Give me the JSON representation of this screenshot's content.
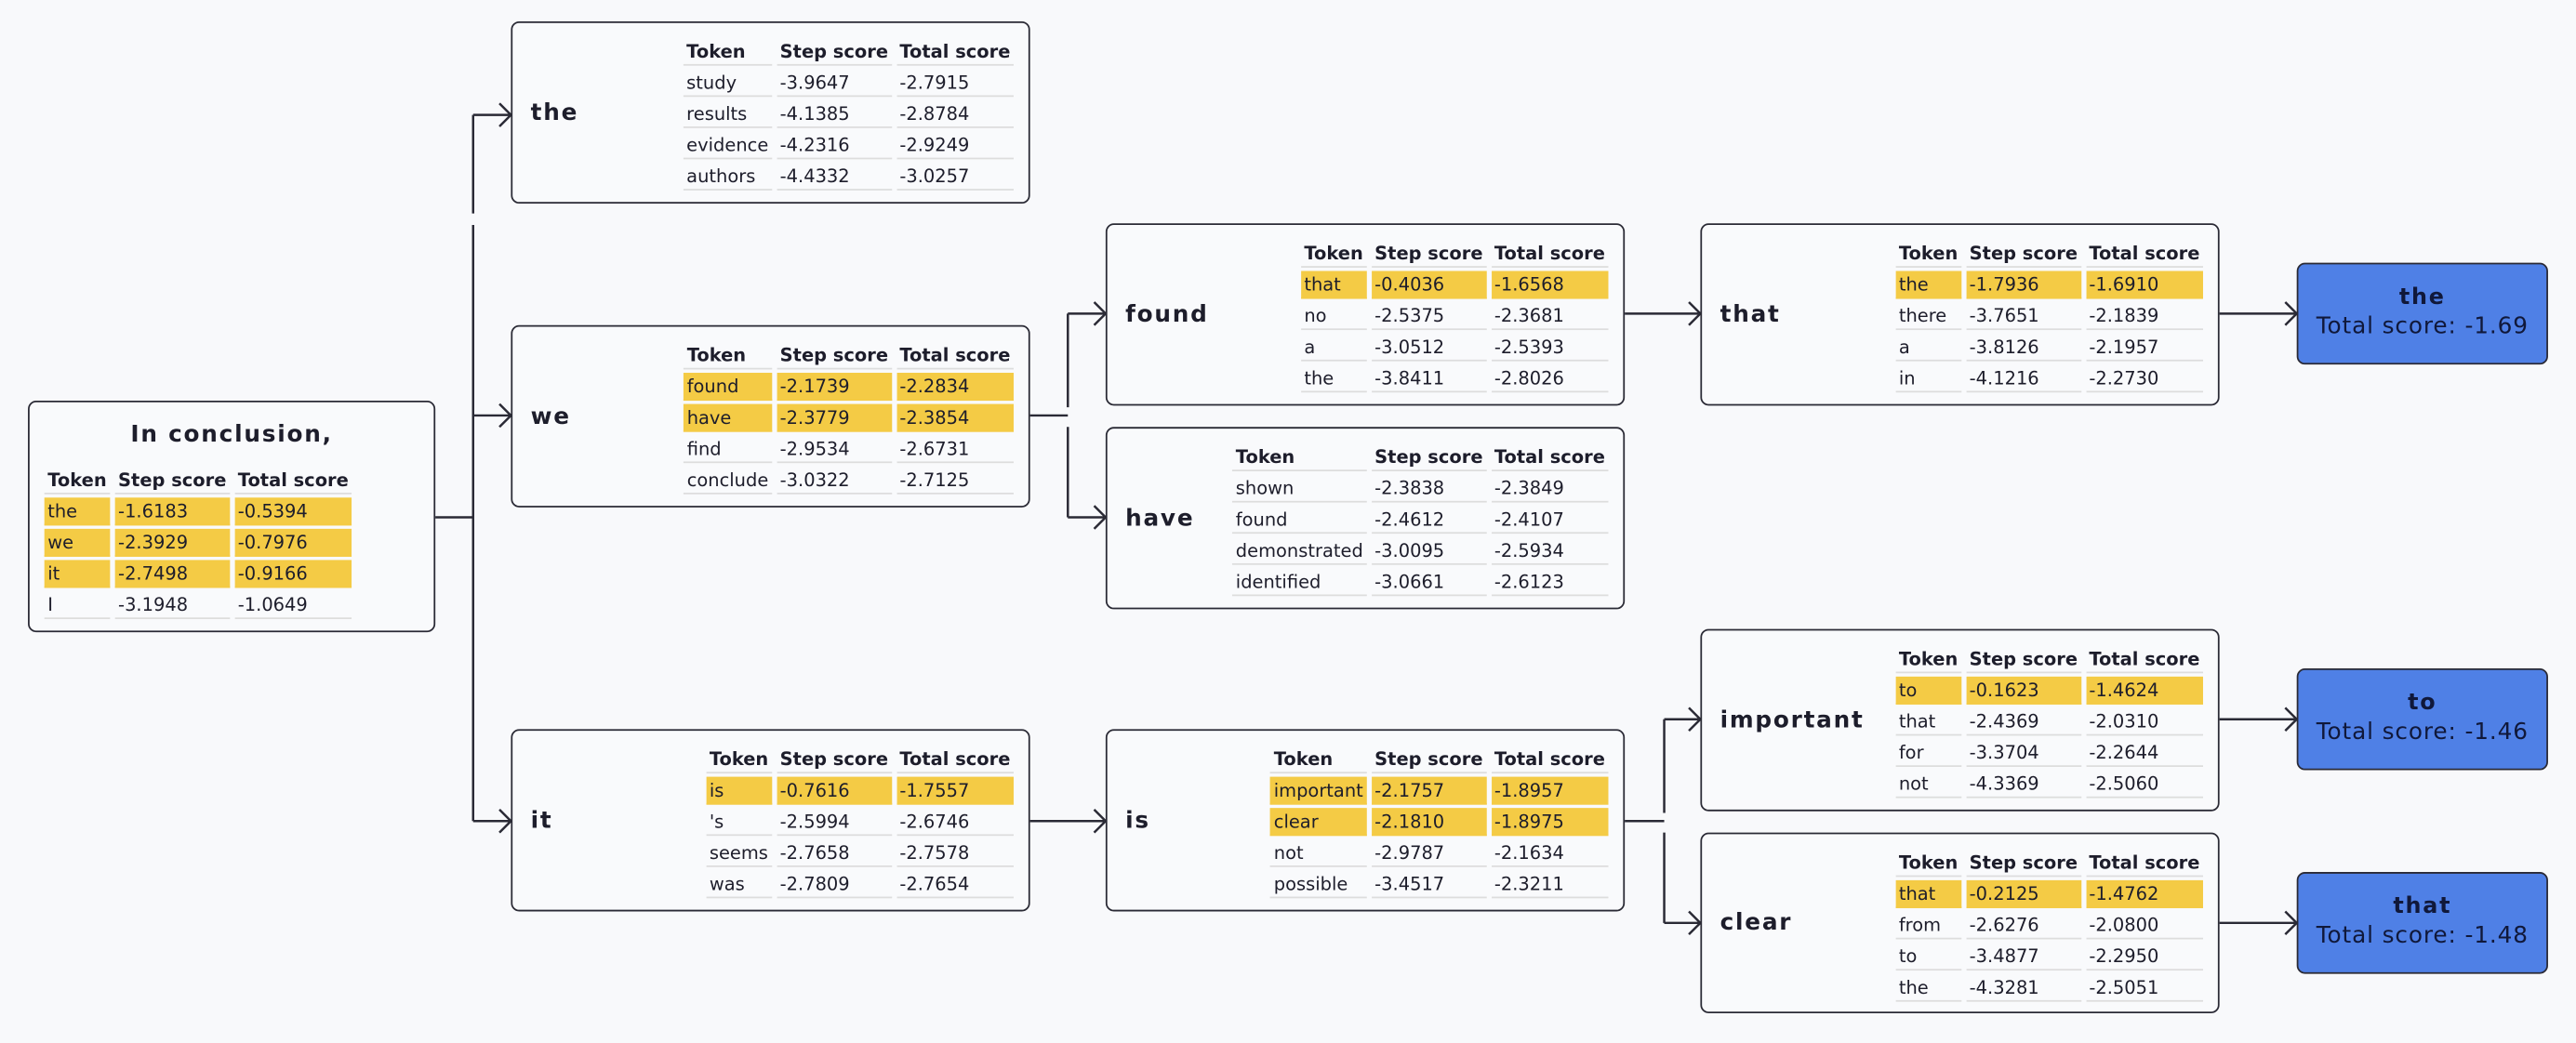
{
  "columns": [
    "Token",
    "Step score",
    "Total score"
  ],
  "nodes": [
    {
      "label": "In conclusion,",
      "rows": [
        [
          "the",
          "-1.6183",
          "-0.5394"
        ],
        [
          "we",
          "-2.3929",
          "-0.7976"
        ],
        [
          "it",
          "-2.7498",
          "-0.9166"
        ],
        [
          "I",
          "-3.1948",
          "-1.0649"
        ]
      ],
      "highlight": [
        0,
        1,
        2
      ]
    },
    {
      "label": "the",
      "rows": [
        [
          "study",
          "-3.9647",
          "-2.7915"
        ],
        [
          "results",
          "-4.1385",
          "-2.8784"
        ],
        [
          "evidence",
          "-4.2316",
          "-2.9249"
        ],
        [
          "authors",
          "-4.4332",
          "-3.0257"
        ]
      ],
      "highlight": []
    },
    {
      "label": "we",
      "rows": [
        [
          "found",
          "-2.1739",
          "-2.2834"
        ],
        [
          "have",
          "-2.3779",
          "-2.3854"
        ],
        [
          "find",
          "-2.9534",
          "-2.6731"
        ],
        [
          "conclude",
          "-3.0322",
          "-2.7125"
        ]
      ],
      "highlight": [
        0,
        1
      ]
    },
    {
      "label": "it",
      "rows": [
        [
          "is",
          "-0.7616",
          "-1.7557"
        ],
        [
          "'s",
          "-2.5994",
          "-2.6746"
        ],
        [
          "seems",
          "-2.7658",
          "-2.7578"
        ],
        [
          "was",
          "-2.7809",
          "-2.7654"
        ]
      ],
      "highlight": [
        0
      ]
    },
    {
      "label": "found",
      "rows": [
        [
          "that",
          "-0.4036",
          "-1.6568"
        ],
        [
          "no",
          "-2.5375",
          "-2.3681"
        ],
        [
          "a",
          "-3.0512",
          "-2.5393"
        ],
        [
          "the",
          "-3.8411",
          "-2.8026"
        ]
      ],
      "highlight": [
        0
      ]
    },
    {
      "label": "have",
      "rows": [
        [
          "shown",
          "-2.3838",
          "-2.3849"
        ],
        [
          "found",
          "-2.4612",
          "-2.4107"
        ],
        [
          "demonstrated",
          "-3.0095",
          "-2.5934"
        ],
        [
          "identified",
          "-3.0661",
          "-2.6123"
        ]
      ],
      "highlight": []
    },
    {
      "label": "is",
      "rows": [
        [
          "important",
          "-2.1757",
          "-1.8957"
        ],
        [
          "clear",
          "-2.1810",
          "-1.8975"
        ],
        [
          "not",
          "-2.9787",
          "-2.1634"
        ],
        [
          "possible",
          "-3.4517",
          "-2.3211"
        ]
      ],
      "highlight": [
        0,
        1
      ]
    },
    {
      "label": "that",
      "rows": [
        [
          "the",
          "-1.7936",
          "-1.6910"
        ],
        [
          "there",
          "-3.7651",
          "-2.1839"
        ],
        [
          "a",
          "-3.8126",
          "-2.1957"
        ],
        [
          "in",
          "-4.1216",
          "-2.2730"
        ]
      ],
      "highlight": [
        0
      ]
    },
    {
      "label": "important",
      "rows": [
        [
          "to",
          "-0.1623",
          "-1.4624"
        ],
        [
          "that",
          "-2.4369",
          "-2.0310"
        ],
        [
          "for",
          "-3.3704",
          "-2.2644"
        ],
        [
          "not",
          "-4.3369",
          "-2.5060"
        ]
      ],
      "highlight": [
        0
      ]
    },
    {
      "label": "clear",
      "rows": [
        [
          "that",
          "-0.2125",
          "-1.4762"
        ],
        [
          "from",
          "-2.6276",
          "-2.0800"
        ],
        [
          "to",
          "-3.4877",
          "-2.2950"
        ],
        [
          "the",
          "-4.3281",
          "-2.5051"
        ]
      ],
      "highlight": [
        0
      ]
    }
  ],
  "results": [
    {
      "label": "the",
      "score": "Total score: -1.69"
    },
    {
      "label": "to",
      "score": "Total score: -1.46"
    },
    {
      "label": "that",
      "score": "Total score: -1.48"
    }
  ]
}
